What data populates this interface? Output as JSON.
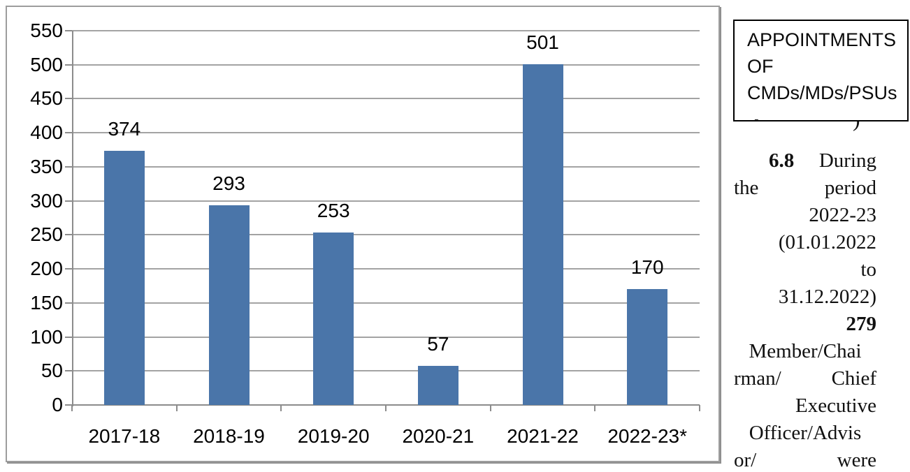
{
  "page": {
    "background": "#ffffff"
  },
  "chart_data": {
    "type": "bar",
    "title": "",
    "xlabel": "",
    "ylabel": "",
    "categories": [
      "2017-18",
      "2018-19",
      "2019-20",
      "2020-21",
      "2021-22",
      "2022-23*"
    ],
    "values": [
      374,
      293,
      253,
      57,
      501,
      170
    ],
    "value_labels": [
      "374",
      "293",
      "253",
      "57",
      "501",
      "170"
    ],
    "ylim": [
      0,
      550
    ],
    "ytick_step": 50,
    "ytick_labels": [
      "550",
      "500",
      "450",
      "400",
      "350",
      "300",
      "250",
      "200",
      "150",
      "100",
      "50",
      "0"
    ],
    "grid": "on",
    "legend_position": "none",
    "bar_color": "#4a75a9",
    "gridline_color": "#a3a3a3",
    "axis_color": "#8c8c8c",
    "frame_border_color": "#9d9d9d",
    "label_color": "#000000"
  },
  "callout_box": {
    "lines": [
      "APPOINTMENTS",
      "OF",
      "CMDs/MDs/PSUs"
    ],
    "border_color": "#000000",
    "stray_mark": "-",
    "clipped_fragment": ")"
  },
  "paragraph": {
    "lines": [
      {
        "align": "between",
        "indent": 50,
        "segs": [
          {
            "t": "6.8",
            "b": true
          },
          {
            "t": "During"
          }
        ]
      },
      {
        "align": "between",
        "indent": 0,
        "segs": [
          {
            "t": "the"
          },
          {
            "t": "period"
          }
        ]
      },
      {
        "align": "right",
        "indent": 0,
        "segs": [
          {
            "t": "2022-23"
          }
        ]
      },
      {
        "align": "right",
        "indent": 0,
        "segs": [
          {
            "t": "(01.01.2022"
          }
        ]
      },
      {
        "align": "right",
        "indent": 0,
        "segs": [
          {
            "t": "to"
          }
        ]
      },
      {
        "align": "right",
        "indent": 0,
        "segs": [
          {
            "t": "31.12.2022)"
          }
        ]
      },
      {
        "align": "right",
        "indent": 0,
        "segs": [
          {
            "t": "279",
            "b": true
          }
        ]
      },
      {
        "align": "center",
        "indent": 0,
        "segs": [
          {
            "t": "Member/Chai"
          }
        ]
      },
      {
        "align": "between",
        "indent": 0,
        "segs": [
          {
            "t": "rman/"
          },
          {
            "t": "Chief"
          }
        ]
      },
      {
        "align": "right",
        "indent": 0,
        "segs": [
          {
            "t": "Executive"
          }
        ]
      },
      {
        "align": "center",
        "indent": 0,
        "segs": [
          {
            "t": "Officer/Advis"
          }
        ]
      },
      {
        "align": "between",
        "indent": 0,
        "segs": [
          {
            "t": "or/"
          },
          {
            "t": "were"
          }
        ]
      }
    ]
  }
}
